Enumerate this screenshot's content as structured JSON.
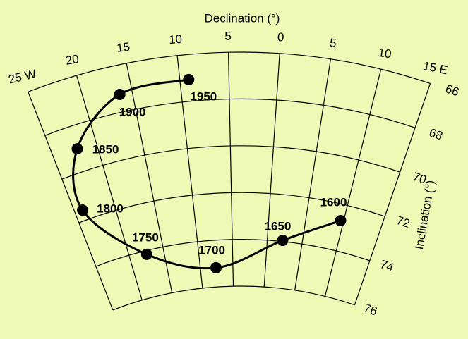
{
  "chart_data": {
    "type": "fan",
    "xlabel": "Declination (°)",
    "ylabel": "Inclination (°)",
    "xlim": [
      -25,
      15
    ],
    "ylim": [
      66,
      76
    ],
    "xticks": [
      {
        "value": -25,
        "label": "25 W"
      },
      {
        "value": -20,
        "label": "20"
      },
      {
        "value": -15,
        "label": "15"
      },
      {
        "value": -10,
        "label": "10"
      },
      {
        "value": -5,
        "label": "5"
      },
      0,
      5,
      10,
      {
        "value": 15,
        "label": "15 E"
      }
    ],
    "yticks": [
      66,
      68,
      70,
      72,
      74,
      76
    ],
    "grid": true,
    "series": [
      {
        "color": "#000000",
        "labels": [
          "1600",
          "1650",
          "1700",
          "1750",
          "1800",
          "1850",
          "1900",
          "1950"
        ],
        "x": [
          9.6,
          2.2,
          -7.6,
          -17.5,
          -24.0,
          -22.2,
          -16.3,
          -9.1
        ],
        "y": [
          72.7,
          73.95,
          75.18,
          74.16,
          71.55,
          69.0,
          67.24,
          67.07
        ]
      }
    ]
  }
}
